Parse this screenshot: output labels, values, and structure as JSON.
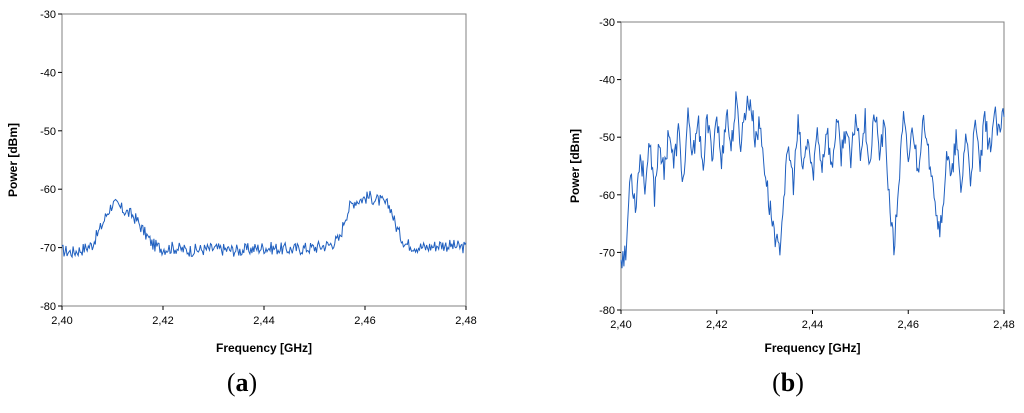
{
  "captions": {
    "a": "a",
    "b": "b"
  },
  "chart_data": [
    {
      "id": "a",
      "type": "line",
      "xlabel": "Frequency [GHz]",
      "ylabel": "Power [dBm]",
      "xlim": [
        2.4,
        2.48
      ],
      "ylim": [
        -80,
        -30
      ],
      "xticks": [
        "2,40",
        "2,42",
        "2,44",
        "2,46",
        "2,48"
      ],
      "xtick_values": [
        2.4,
        2.42,
        2.44,
        2.46,
        2.48
      ],
      "yticks": [
        "-30",
        "-40",
        "-50",
        "-60",
        "-70",
        "-80"
      ],
      "ytick_values": [
        -30,
        -40,
        -50,
        -60,
        -70,
        -80
      ],
      "grid": false,
      "line_color": "#1f5fbf",
      "series": [
        {
          "x": [
            2.4,
            2.402,
            2.404,
            2.406,
            2.408,
            2.409,
            2.41,
            2.411,
            2.412,
            2.413,
            2.414,
            2.415,
            2.416,
            2.418,
            2.42,
            2.422,
            2.425,
            2.43,
            2.435,
            2.44,
            2.445,
            2.45,
            2.453,
            2.455,
            2.456,
            2.457,
            2.458,
            2.459,
            2.46,
            2.461,
            2.462,
            2.463,
            2.464,
            2.465,
            2.466,
            2.467,
            2.468,
            2.47,
            2.472,
            2.475,
            2.478,
            2.48
          ],
          "values": [
            -70.5,
            -70.8,
            -70.3,
            -69.5,
            -66.0,
            -64.0,
            -62.5,
            -62.8,
            -63.5,
            -64.0,
            -64.5,
            -65.5,
            -67.0,
            -69.5,
            -70.2,
            -70.0,
            -70.5,
            -70.2,
            -70.5,
            -70.0,
            -70.3,
            -70.0,
            -69.5,
            -68.5,
            -65.0,
            -63.0,
            -62.0,
            -61.8,
            -61.5,
            -61.3,
            -61.8,
            -62.0,
            -62.5,
            -63.0,
            -66.0,
            -68.0,
            -69.3,
            -69.8,
            -70.0,
            -69.5,
            -69.8,
            -70.0
          ]
        }
      ]
    },
    {
      "id": "b",
      "type": "line",
      "xlabel": "Frequency [GHz]",
      "ylabel": "Power [dBm]",
      "xlim": [
        2.4,
        2.48
      ],
      "ylim": [
        -80,
        -30
      ],
      "xticks": [
        "2,40",
        "2,42",
        "2,44",
        "2,46",
        "2,48"
      ],
      "xtick_values": [
        2.4,
        2.42,
        2.44,
        2.46,
        2.48
      ],
      "yticks": [
        "-30",
        "-40",
        "-50",
        "-60",
        "-70",
        "-80"
      ],
      "yticks_values_note": "",
      "ytick_values": [
        -30,
        -40,
        -50,
        -60,
        -70,
        -80
      ],
      "grid": false,
      "line_color": "#1f5fbf",
      "series": [
        {
          "x": [
            2.4,
            2.401,
            2.402,
            2.403,
            2.404,
            2.405,
            2.406,
            2.407,
            2.408,
            2.409,
            2.41,
            2.411,
            2.412,
            2.413,
            2.414,
            2.415,
            2.416,
            2.417,
            2.418,
            2.419,
            2.42,
            2.421,
            2.422,
            2.423,
            2.424,
            2.425,
            2.426,
            2.427,
            2.428,
            2.429,
            2.43,
            2.431,
            2.432,
            2.433,
            2.434,
            2.435,
            2.436,
            2.437,
            2.438,
            2.439,
            2.44,
            2.441,
            2.442,
            2.443,
            2.444,
            2.445,
            2.446,
            2.447,
            2.448,
            2.449,
            2.45,
            2.451,
            2.452,
            2.453,
            2.454,
            2.455,
            2.456,
            2.457,
            2.458,
            2.459,
            2.46,
            2.461,
            2.462,
            2.463,
            2.464,
            2.465,
            2.466,
            2.467,
            2.468,
            2.469,
            2.47,
            2.471,
            2.472,
            2.473,
            2.474,
            2.475,
            2.476,
            2.477,
            2.478,
            2.479,
            2.48
          ],
          "values": [
            -70.5,
            -71.0,
            -55.0,
            -62.0,
            -53.0,
            -58.0,
            -52.0,
            -60.0,
            -50.0,
            -57.0,
            -48.0,
            -55.0,
            -49.0,
            -58.0,
            -47.0,
            -54.0,
            -46.0,
            -56.0,
            -47.0,
            -53.0,
            -46.0,
            -55.0,
            -45.0,
            -52.0,
            -44.0,
            -51.0,
            -45.0,
            -43.5,
            -50.0,
            -48.0,
            -55.0,
            -62.0,
            -66.0,
            -70.5,
            -60.0,
            -52.0,
            -58.0,
            -48.0,
            -56.0,
            -50.0,
            -57.0,
            -49.0,
            -55.0,
            -48.0,
            -56.0,
            -47.0,
            -53.0,
            -48.0,
            -55.0,
            -46.0,
            -52.0,
            -47.0,
            -55.0,
            -45.5,
            -53.0,
            -48.0,
            -60.0,
            -70.0,
            -58.0,
            -47.0,
            -54.0,
            -48.0,
            -56.0,
            -47.0,
            -53.0,
            -55.0,
            -64.0,
            -66.0,
            -52.0,
            -58.0,
            -50.0,
            -60.0,
            -49.0,
            -57.0,
            -48.0,
            -55.0,
            -47.0,
            -52.0,
            -46.0,
            -50.0,
            -45.5
          ]
        }
      ]
    }
  ]
}
